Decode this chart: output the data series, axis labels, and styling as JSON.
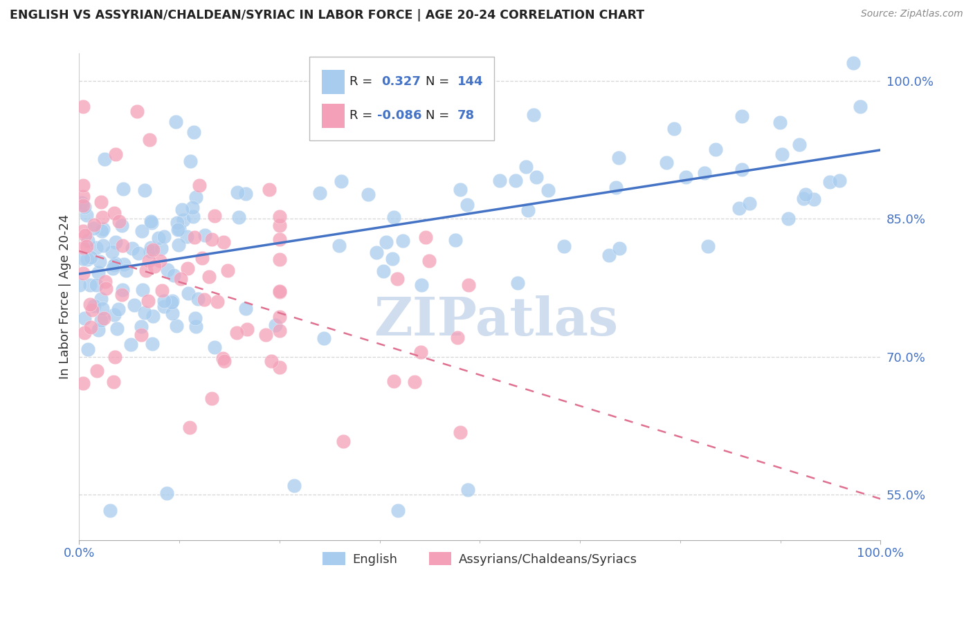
{
  "title": "ENGLISH VS ASSYRIAN/CHALDEAN/SYRIAC IN LABOR FORCE | AGE 20-24 CORRELATION CHART",
  "source": "Source: ZipAtlas.com",
  "ylabel": "In Labor Force | Age 20-24",
  "xlim": [
    0,
    1
  ],
  "ylim": [
    0.5,
    1.03
  ],
  "yticks": [
    0.55,
    0.7,
    0.85,
    1.0
  ],
  "ytick_labels": [
    "55.0%",
    "70.0%",
    "85.0%",
    "100.0%"
  ],
  "xtick_labels": [
    "0.0%",
    "100.0%"
  ],
  "xtick_pos": [
    0.0,
    1.0
  ],
  "blue_R": 0.327,
  "blue_N": 144,
  "pink_R": -0.086,
  "pink_N": 78,
  "blue_color": "#A8CCEE",
  "pink_color": "#F4A0B8",
  "blue_line_color": "#4472C4",
  "pink_line_color": "#E07090",
  "watermark": "ZIPatlas",
  "watermark_color": "#C8D8EC",
  "legend_label_blue": "English",
  "legend_label_pink": "Assyrians/Chaldeans/Syriacs",
  "tick_color": "#4472C4",
  "grid_color": "#CCCCCC",
  "blue_intercept": 0.79,
  "blue_slope": 0.135,
  "pink_intercept": 0.815,
  "pink_slope": -0.27
}
